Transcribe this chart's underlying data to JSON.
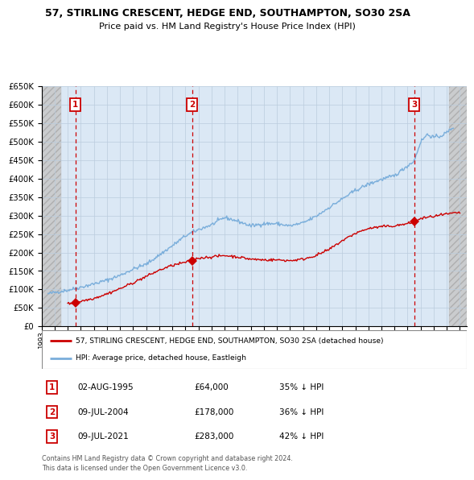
{
  "title": "57, STIRLING CRESCENT, HEDGE END, SOUTHAMPTON, SO30 2SA",
  "subtitle": "Price paid vs. HM Land Registry's House Price Index (HPI)",
  "legend_line1": "57, STIRLING CRESCENT, HEDGE END, SOUTHAMPTON, SO30 2SA (detached house)",
  "legend_line2": "HPI: Average price, detached house, Eastleigh",
  "footer": "Contains HM Land Registry data © Crown copyright and database right 2024.\nThis data is licensed under the Open Government Licence v3.0.",
  "sales": [
    {
      "num": 1,
      "date": "02-AUG-1995",
      "price": 64000,
      "hpi_diff": "35% ↓ HPI",
      "date_num": 1995.58
    },
    {
      "num": 2,
      "date": "09-JUL-2004",
      "price": 178000,
      "hpi_diff": "36% ↓ HPI",
      "date_num": 2004.52
    },
    {
      "num": 3,
      "date": "09-JUL-2021",
      "price": 283000,
      "hpi_diff": "42% ↓ HPI",
      "date_num": 2021.52
    }
  ],
  "ylim": [
    0,
    650000
  ],
  "xlim_start": 1993.0,
  "xlim_end": 2025.5,
  "hatch_left_end": 1994.5,
  "hatch_right_start": 2024.2,
  "red_line_color": "#cc0000",
  "blue_line_color": "#7aaedb",
  "grid_color": "#bbccdd",
  "bg_color": "#dbe8f5",
  "sale_marker_color": "#cc0000",
  "dashed_line_color": "#cc0000",
  "box_color": "#cc0000",
  "hpi_x": [
    1993.5,
    1994,
    1995,
    1996,
    1997,
    1998,
    1999,
    2000,
    2001,
    2002,
    2003,
    2004,
    2005,
    2006,
    2007,
    2008,
    2009,
    2010,
    2011,
    2012,
    2013,
    2014,
    2015,
    2016,
    2017,
    2018,
    2019,
    2020,
    2021,
    2021.5,
    2022,
    2022.5,
    2023,
    2023.5,
    2024,
    2024.5
  ],
  "hpi_y": [
    88000,
    92000,
    98000,
    106000,
    115000,
    125000,
    138000,
    155000,
    168000,
    193000,
    218000,
    245000,
    262000,
    275000,
    295000,
    285000,
    272000,
    278000,
    278000,
    272000,
    280000,
    298000,
    322000,
    345000,
    368000,
    385000,
    398000,
    408000,
    435000,
    448000,
    500000,
    520000,
    512000,
    515000,
    525000,
    540000
  ],
  "red_x": [
    1995.0,
    1995.58,
    1996,
    1997,
    1998,
    1999,
    2000,
    2001,
    2002,
    2003,
    2004.52,
    2005,
    2006,
    2007,
    2008,
    2009,
    2010,
    2011,
    2012,
    2013,
    2014,
    2015,
    2016,
    2017,
    2018,
    2019,
    2020,
    2021.0,
    2021.52,
    2022,
    2023,
    2024,
    2025
  ],
  "red_y": [
    61000,
    64000,
    68000,
    76000,
    88000,
    102000,
    118000,
    135000,
    152000,
    165000,
    178000,
    185000,
    188000,
    192000,
    188000,
    182000,
    180000,
    180000,
    178000,
    182000,
    192000,
    208000,
    232000,
    252000,
    265000,
    270000,
    272000,
    278000,
    283000,
    292000,
    298000,
    304000,
    308000
  ]
}
